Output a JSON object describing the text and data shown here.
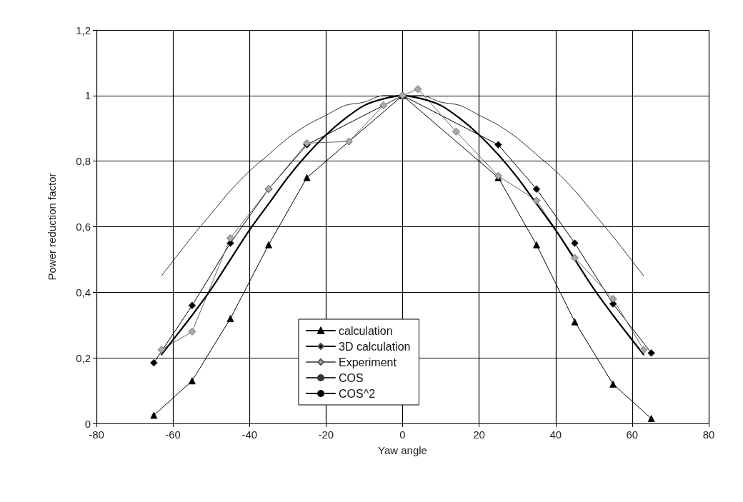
{
  "chart_data": {
    "type": "line",
    "xlabel": "Yaw angle",
    "ylabel": "Power reduction factor",
    "xlim": [
      -80,
      80
    ],
    "xticks": [
      -80,
      -60,
      -40,
      -20,
      0,
      20,
      40,
      60,
      80
    ],
    "ylim": [
      0,
      1.2
    ],
    "yticks": [
      0,
      {
        "value": 0.2,
        "label": "0,2"
      },
      {
        "value": 0.4,
        "label": "0,4"
      },
      {
        "value": 0.6,
        "label": "0,6"
      },
      {
        "value": 0.8,
        "label": "0,8"
      },
      1,
      {
        "value": 1.2,
        "label": "1,2"
      }
    ],
    "grid": true,
    "legend": "bottom",
    "line_style": "solid",
    "series": [
      {
        "name": "calculation",
        "color": "#000000",
        "marker": "triangle",
        "x": [
          -65,
          -55,
          -45,
          -35,
          -25,
          0,
          25,
          35,
          45,
          55,
          65
        ],
        "values": [
          0.025,
          0.13,
          0.32,
          0.545,
          0.75,
          1,
          0.75,
          0.545,
          0.31,
          0.12,
          0.015
        ]
      },
      {
        "name": "3D calculation",
        "color": "#000000",
        "marker": "diamond",
        "x": [
          -65,
          -55,
          -45,
          -35,
          -25,
          0,
          25,
          35,
          45,
          55,
          65
        ],
        "values": [
          0.185,
          0.36,
          0.55,
          0.715,
          0.85,
          1,
          0.85,
          0.715,
          0.55,
          0.365,
          0.215
        ]
      },
      {
        "name": "Experiment",
        "color": "#aaaaaa",
        "marker": "diamond",
        "x": [
          -63,
          -55,
          -45,
          -35,
          -25,
          -14,
          -5,
          0,
          4,
          14,
          25,
          35,
          45,
          55,
          63
        ],
        "values": [
          0.225,
          0.28,
          0.565,
          0.715,
          0.855,
          0.86,
          0.97,
          1,
          1.02,
          0.89,
          0.755,
          0.68,
          0.505,
          0.38,
          0.225
        ]
      },
      {
        "name": "COS",
        "color": "#333333",
        "marker": "none",
        "x": [
          -63,
          -55,
          -50,
          -45,
          -40,
          -35,
          -30,
          -25,
          -20,
          -15,
          -10,
          -5,
          0,
          5,
          10,
          15,
          20,
          25,
          30,
          35,
          40,
          45,
          50,
          55,
          63
        ],
        "values": [
          0.45,
          0.57,
          0.64,
          0.71,
          0.77,
          0.82,
          0.87,
          0.91,
          0.94,
          0.97,
          0.98,
          1,
          1,
          1,
          0.98,
          0.97,
          0.94,
          0.91,
          0.87,
          0.82,
          0.77,
          0.71,
          0.64,
          0.57,
          0.45
        ]
      },
      {
        "name": "COS^2",
        "color": "#000000",
        "marker": "none",
        "x": [
          -63,
          -55,
          -50,
          -45,
          -40,
          -35,
          -30,
          -25,
          -20,
          -15,
          -10,
          -5,
          0,
          5,
          10,
          15,
          20,
          25,
          30,
          35,
          40,
          45,
          50,
          55,
          63
        ],
        "values": [
          0.21,
          0.33,
          0.41,
          0.5,
          0.59,
          0.67,
          0.75,
          0.82,
          0.88,
          0.93,
          0.97,
          0.99,
          1,
          0.99,
          0.97,
          0.93,
          0.88,
          0.82,
          0.75,
          0.67,
          0.59,
          0.5,
          0.41,
          0.33,
          0.21
        ]
      }
    ]
  }
}
